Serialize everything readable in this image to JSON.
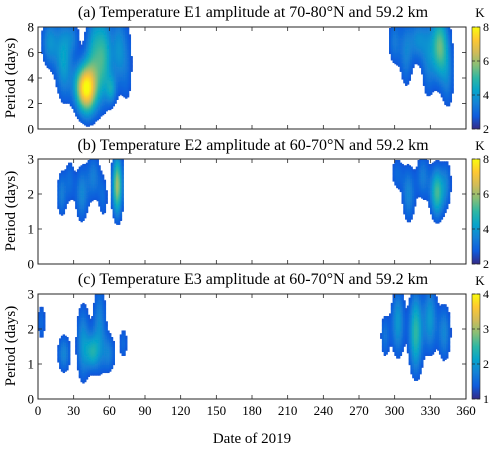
{
  "figure": {
    "xlabel": "Date of 2019",
    "xticks": [
      0,
      30,
      60,
      90,
      120,
      150,
      180,
      210,
      240,
      270,
      300,
      330,
      360
    ]
  },
  "chart_data": [
    {
      "type": "heatmap",
      "title": "(a) Temperature E1 amplitude at 70-80°N and 59.2 km",
      "ylabel": "Period (days)",
      "xlim": [
        0,
        360
      ],
      "ylim": [
        0,
        8
      ],
      "yticks": [
        0,
        2,
        4,
        6,
        8
      ],
      "colorbar": {
        "ticks": [
          2,
          4,
          6,
          8
        ],
        "range": [
          2,
          8
        ],
        "unit": "K"
      },
      "blobs": [
        {
          "x": 10,
          "y": 6.8,
          "wx": 5,
          "wy": 1.4,
          "peak": 3.8
        },
        {
          "x": 22,
          "y": 5.5,
          "wx": 5,
          "wy": 2.2,
          "peak": 4.2
        },
        {
          "x": 30,
          "y": 7.2,
          "wx": 4,
          "wy": 0.9,
          "peak": 3.0
        },
        {
          "x": 36,
          "y": 3.4,
          "wx": 5,
          "wy": 1.2,
          "peak": 3.8
        },
        {
          "x": 42,
          "y": 3.1,
          "wx": 6,
          "wy": 1.4,
          "peak": 6.8
        },
        {
          "x": 47,
          "y": 6.2,
          "wx": 5,
          "wy": 2.2,
          "peak": 4.0
        },
        {
          "x": 56,
          "y": 5.6,
          "wx": 5,
          "wy": 2.4,
          "peak": 4.6
        },
        {
          "x": 62,
          "y": 3.1,
          "wx": 3,
          "wy": 0.8,
          "peak": 3.6
        },
        {
          "x": 68,
          "y": 6.3,
          "wx": 4,
          "wy": 2.0,
          "peak": 3.6
        },
        {
          "x": 75,
          "y": 5.0,
          "wx": 4,
          "wy": 2.6,
          "peak": 3.0
        },
        {
          "x": 300,
          "y": 6.9,
          "wx": 4,
          "wy": 1.4,
          "peak": 3.3
        },
        {
          "x": 310,
          "y": 5.9,
          "wx": 4,
          "wy": 2.0,
          "peak": 3.4
        },
        {
          "x": 320,
          "y": 7.0,
          "wx": 5,
          "wy": 1.2,
          "peak": 3.6
        },
        {
          "x": 328,
          "y": 5.3,
          "wx": 4,
          "wy": 2.4,
          "peak": 3.2
        },
        {
          "x": 338,
          "y": 6.5,
          "wx": 5,
          "wy": 1.8,
          "peak": 5.4
        },
        {
          "x": 345,
          "y": 4.1,
          "wx": 4,
          "wy": 2.0,
          "peak": 3.2
        }
      ]
    },
    {
      "type": "heatmap",
      "title": "(b) Temperature E2 amplitude at 60-70°N and 59.2 km",
      "ylabel": "Period (days)",
      "xlim": [
        0,
        360
      ],
      "ylim": [
        0,
        3
      ],
      "yticks": [
        0,
        1,
        2,
        3
      ],
      "colorbar": {
        "ticks": [
          2,
          4,
          6,
          8
        ],
        "range": [
          2,
          8
        ],
        "unit": "K"
      },
      "blobs": [
        {
          "x": 20,
          "y": 2.0,
          "wx": 3,
          "wy": 0.5,
          "peak": 3.4
        },
        {
          "x": 27,
          "y": 2.4,
          "wx": 3,
          "wy": 0.5,
          "peak": 3.0
        },
        {
          "x": 37,
          "y": 2.0,
          "wx": 4,
          "wy": 0.6,
          "peak": 3.6
        },
        {
          "x": 47,
          "y": 2.5,
          "wx": 4,
          "wy": 0.5,
          "peak": 3.4
        },
        {
          "x": 55,
          "y": 1.9,
          "wx": 3,
          "wy": 0.5,
          "peak": 3.0
        },
        {
          "x": 67,
          "y": 2.25,
          "wx": 3,
          "wy": 0.6,
          "peak": 6.0
        },
        {
          "x": 302,
          "y": 2.6,
          "wx": 4,
          "wy": 0.4,
          "peak": 3.0
        },
        {
          "x": 312,
          "y": 2.0,
          "wx": 4,
          "wy": 0.6,
          "peak": 3.6
        },
        {
          "x": 324,
          "y": 2.5,
          "wx": 4,
          "wy": 0.5,
          "peak": 3.4
        },
        {
          "x": 336,
          "y": 2.05,
          "wx": 4,
          "wy": 0.5,
          "peak": 5.2
        },
        {
          "x": 344,
          "y": 2.3,
          "wx": 3,
          "wy": 0.5,
          "peak": 3.2
        }
      ]
    },
    {
      "type": "heatmap",
      "title": "(c) Temperature E3 amplitude at 60-70°N and 59.2 km",
      "ylabel": "Period (days)",
      "xlim": [
        0,
        360
      ],
      "ylim": [
        0,
        3
      ],
      "yticks": [
        0,
        1,
        2,
        3
      ],
      "colorbar": {
        "ticks": [
          1,
          2,
          3,
          4
        ],
        "range": [
          1,
          4
        ],
        "unit": "K"
      },
      "blobs": [
        {
          "x": 3,
          "y": 2.2,
          "wx": 3,
          "wy": 0.5,
          "peak": 1.5
        },
        {
          "x": 22,
          "y": 1.3,
          "wx": 4,
          "wy": 0.4,
          "peak": 1.8
        },
        {
          "x": 38,
          "y": 1.6,
          "wx": 4,
          "wy": 0.8,
          "peak": 1.9
        },
        {
          "x": 46,
          "y": 1.35,
          "wx": 4,
          "wy": 0.35,
          "peak": 2.1
        },
        {
          "x": 52,
          "y": 2.1,
          "wx": 4,
          "wy": 0.9,
          "peak": 1.8
        },
        {
          "x": 60,
          "y": 1.3,
          "wx": 4,
          "wy": 0.4,
          "peak": 1.7
        },
        {
          "x": 72,
          "y": 1.6,
          "wx": 3,
          "wy": 0.4,
          "peak": 1.5
        },
        {
          "x": 292,
          "y": 1.8,
          "wx": 3,
          "wy": 0.5,
          "peak": 1.6
        },
        {
          "x": 303,
          "y": 2.2,
          "wx": 4,
          "wy": 0.7,
          "peak": 2.0
        },
        {
          "x": 318,
          "y": 1.9,
          "wx": 4,
          "wy": 0.8,
          "peak": 2.5
        },
        {
          "x": 330,
          "y": 2.3,
          "wx": 4,
          "wy": 0.7,
          "peak": 2.0
        },
        {
          "x": 342,
          "y": 1.9,
          "wx": 4,
          "wy": 0.6,
          "peak": 1.8
        }
      ]
    }
  ]
}
